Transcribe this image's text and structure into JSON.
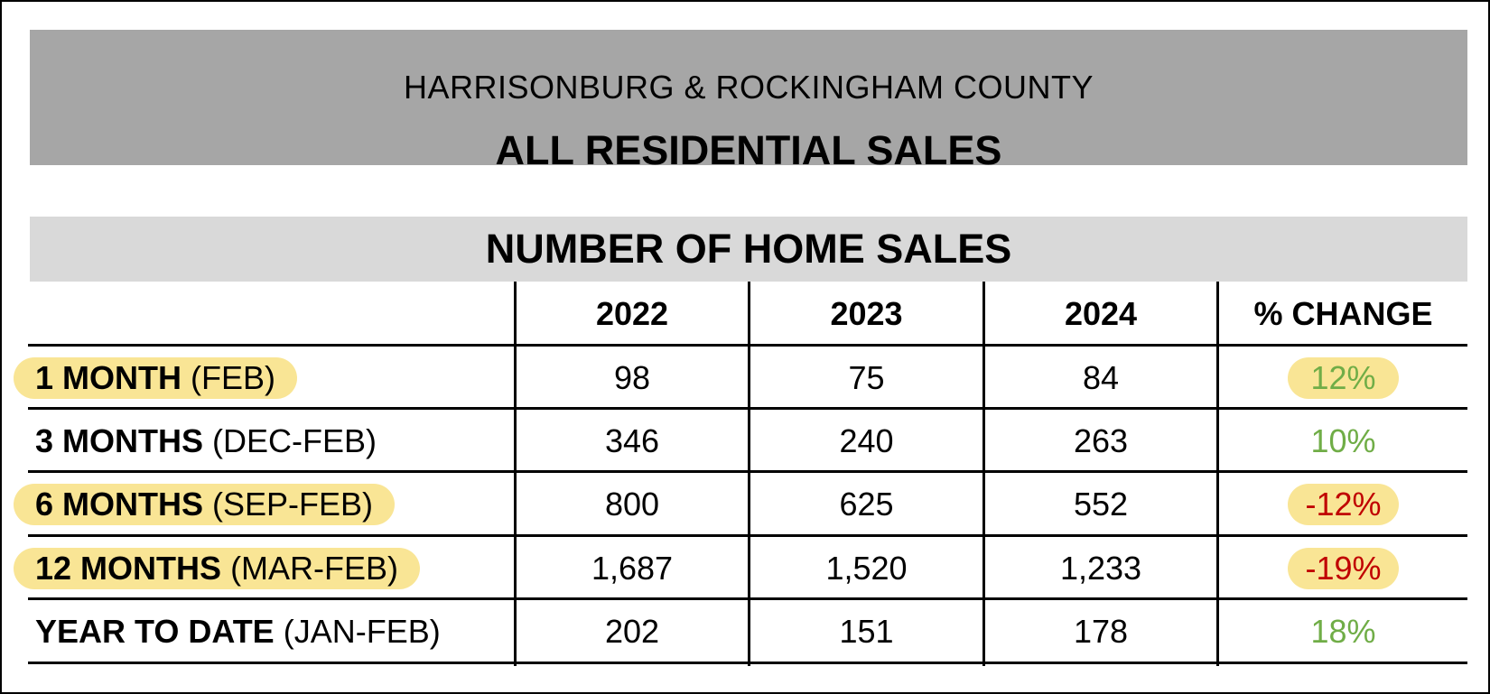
{
  "header": {
    "subtitle": "HARRISONBURG & ROCKINGHAM COUNTY",
    "title": "ALL RESIDENTIAL SALES"
  },
  "section_title": "NUMBER OF HOME SALES",
  "columns": [
    "2022",
    "2023",
    "2024",
    "% CHANGE"
  ],
  "colors": {
    "header_bg": "#a6a6a6",
    "section_bg": "#d9d9d9",
    "highlight": "#f9e595",
    "positive": "#70ad47",
    "negative": "#c00000"
  },
  "rows": [
    {
      "period": "1 MONTH",
      "range": "(FEB)",
      "values": [
        "98",
        "75",
        "84"
      ],
      "change": "12%",
      "label_highlighted": true,
      "change_highlighted": true
    },
    {
      "period": "3 MONTHS",
      "range": "(DEC-FEB)",
      "values": [
        "346",
        "240",
        "263"
      ],
      "change": "10%",
      "label_highlighted": false,
      "change_highlighted": false
    },
    {
      "period": "6 MONTHS",
      "range": "(SEP-FEB)",
      "values": [
        "800",
        "625",
        "552"
      ],
      "change": "-12%",
      "label_highlighted": true,
      "change_highlighted": true
    },
    {
      "period": "12 MONTHS",
      "range": "(MAR-FEB)",
      "values": [
        "1,687",
        "1,520",
        "1,233"
      ],
      "change": "-19%",
      "label_highlighted": true,
      "change_highlighted": true
    },
    {
      "period": "YEAR TO DATE",
      "range": "(JAN-FEB)",
      "values": [
        "202",
        "151",
        "178"
      ],
      "change": "18%",
      "label_highlighted": false,
      "change_highlighted": false
    }
  ]
}
